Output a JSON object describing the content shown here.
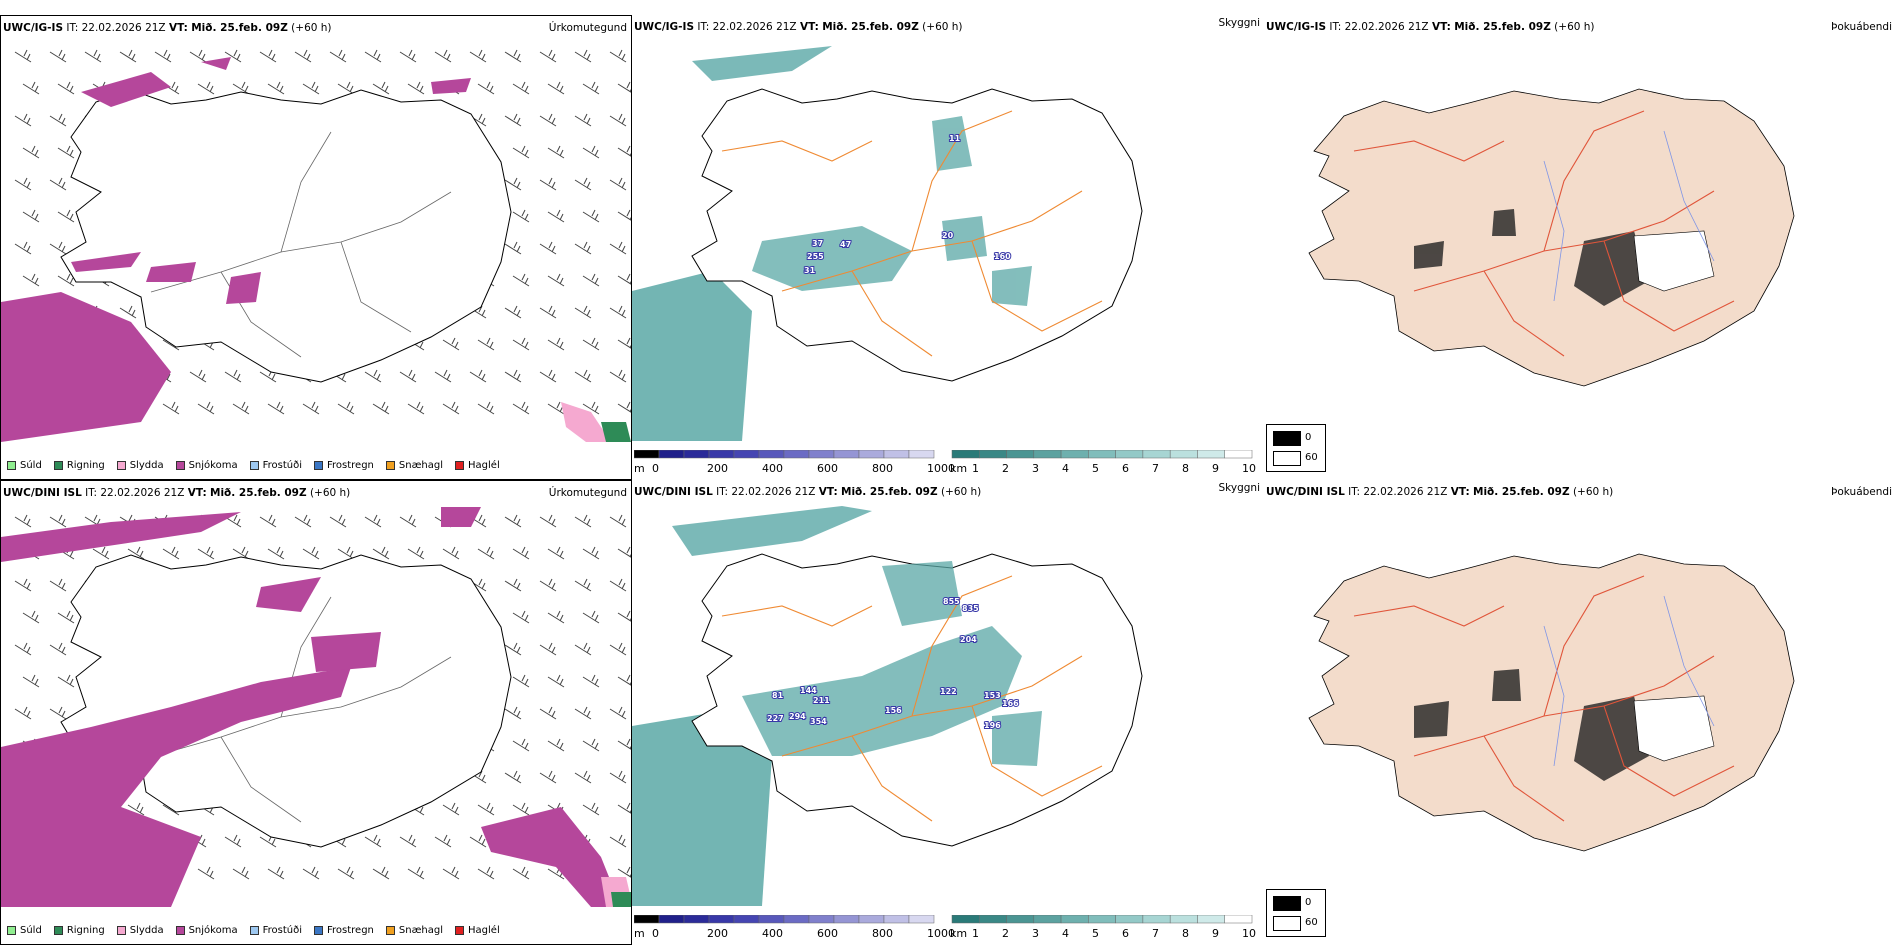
{
  "rows": [
    {
      "model": "UWC/IG-IS",
      "it_label": "IT:",
      "it_value": "22.02.2026 21Z",
      "vt_label": "VT:",
      "vt_value": "Mið. 25.feb. 09Z",
      "lead": "(+60 h)"
    },
    {
      "model": "UWC/DINI ISL",
      "it_label": "IT:",
      "it_value": "22.02.2026 21Z",
      "vt_label": "VT:",
      "vt_value": "Mið. 25.feb. 09Z",
      "lead": "(+60 h)"
    }
  ],
  "panel_names": {
    "precip": "Úrkomutegund",
    "visibility": "Skyggni",
    "fog": "Þokuábendi"
  },
  "precip_legend": [
    {
      "label": "Súld",
      "color": "#90ee90"
    },
    {
      "label": "Rigning",
      "color": "#2e8b57"
    },
    {
      "label": "Slydda",
      "color": "#f5a9d0"
    },
    {
      "label": "Snjókoma",
      "color": "#b5479b"
    },
    {
      "label": "Frostúði",
      "color": "#9ec8f0"
    },
    {
      "label": "Frostregn",
      "color": "#3a76c4"
    },
    {
      "label": "Snæhagl",
      "color": "#f0a020"
    },
    {
      "label": "Haglél",
      "color": "#e02020"
    }
  ],
  "m_scale": {
    "unit": "m",
    "ticks": [
      "0",
      "200",
      "400",
      "600",
      "800",
      "1000"
    ],
    "colors": [
      "#000000",
      "#20208a",
      "#2b2b99",
      "#3838a8",
      "#4545b2",
      "#5858bb",
      "#6b6bc4",
      "#8080cc",
      "#9595d4",
      "#aaaadc",
      "#c0c0e6",
      "#d8d8f0"
    ]
  },
  "km_scale": {
    "unit": "km",
    "ticks": [
      "1",
      "2",
      "3",
      "4",
      "5",
      "6",
      "7",
      "8",
      "9",
      "10"
    ],
    "colors": [
      "#2a7a78",
      "#3a8886",
      "#4b9593",
      "#5ca2a0",
      "#6eb0ae",
      "#80bdbb",
      "#93c9c7",
      "#a7d5d3",
      "#bbe0de",
      "#cfeae9",
      "#ffffff"
    ]
  },
  "fog_key": {
    "high": "0",
    "low": "60"
  },
  "vis_labels": [
    [
      "37",
      "255",
      "31",
      "47",
      "20",
      "160",
      "11"
    ],
    [
      "855",
      "835",
      "204",
      "122",
      "153",
      "166",
      "196",
      "81",
      "144",
      "211",
      "227",
      "294",
      "354",
      "156"
    ]
  ],
  "colors": {
    "snow": "#b5479b",
    "teal": "#5aa8a6",
    "land": "#f3dccb",
    "roads": "#ef8a33",
    "redroads": "#e0553a",
    "rivers": "#7f95e6"
  }
}
